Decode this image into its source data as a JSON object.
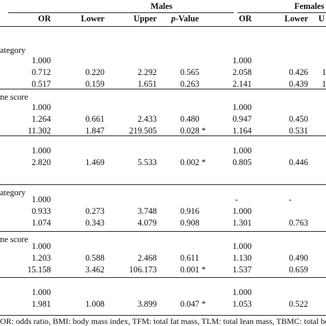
{
  "header": {
    "group_males": "Males",
    "group_females": "Females",
    "col_or": "OR",
    "col_lower": "Lower",
    "col_upper": "Upper",
    "col_pvalue_italic": "p",
    "col_pvalue_rest": "-Value",
    "col_or_f": "OR",
    "col_lower_f": "Lower",
    "col_upper_f_partial": "U"
  },
  "sections": {
    "s1": "ategory",
    "s2": "ne score",
    "s4": "ategory",
    "s5": "ne score"
  },
  "rows": [
    {
      "or_m": "1.000",
      "lo_m": "",
      "up_m": "",
      "p_m": "",
      "or_f": "1.000",
      "lo_f": "",
      "up_f": ""
    },
    {
      "or_m": "0.712",
      "lo_m": "0.220",
      "up_m": "2.292",
      "p_m": "0.565",
      "or_f": "2.058",
      "lo_f": "0.426",
      "up_f": "1"
    },
    {
      "or_m": "0.517",
      "lo_m": "0.159",
      "up_m": "1.651",
      "p_m": "0.263",
      "or_f": "2.141",
      "lo_f": "0.439",
      "up_f": "1"
    },
    {
      "or_m": "1.000",
      "lo_m": "",
      "up_m": "",
      "p_m": "",
      "or_f": "1.000",
      "lo_f": "",
      "up_f": ""
    },
    {
      "or_m": "1.264",
      "lo_m": "0.661",
      "up_m": "2.433",
      "p_m": "0.480",
      "or_f": "0.947",
      "lo_f": "0.450",
      "up_f": ""
    },
    {
      "or_m": "11.302",
      "lo_m": "1.847",
      "up_m": "219.505",
      "p_m": "0.028 *",
      "or_f": "1.164",
      "lo_f": "0.531",
      "up_f": ""
    },
    {
      "or_m": "1.000",
      "lo_m": "",
      "up_m": "",
      "p_m": "",
      "or_f": "1.000",
      "lo_f": "",
      "up_f": ""
    },
    {
      "or_m": "2.820",
      "lo_m": "1.469",
      "up_m": "5.533",
      "p_m": "0.002 *",
      "or_f": "0.805",
      "lo_f": "0.446",
      "up_f": ""
    },
    {
      "or_m": "1.000",
      "lo_m": "",
      "up_m": "",
      "p_m": "",
      "or_f": "-",
      "lo_f": "-",
      "up_f": ""
    },
    {
      "or_m": "0.933",
      "lo_m": "0.273",
      "up_m": "3.748",
      "p_m": "0.916",
      "or_f": "1.000",
      "lo_f": "",
      "up_f": ""
    },
    {
      "or_m": "1.074",
      "lo_m": "0.343",
      "up_m": "4.079",
      "p_m": "0.908",
      "or_f": "1.301",
      "lo_f": "0.763",
      "up_f": ""
    },
    {
      "or_m": "1.000",
      "lo_m": "",
      "up_m": "",
      "p_m": "",
      "or_f": "1.000",
      "lo_f": "",
      "up_f": ""
    },
    {
      "or_m": "1.203",
      "lo_m": "0.588",
      "up_m": "2.468",
      "p_m": "0.611",
      "or_f": "1.130",
      "lo_f": "0.490",
      "up_f": ""
    },
    {
      "or_m": "15.158",
      "lo_m": "3.462",
      "up_m": "106.173",
      "p_m": "0.001 *",
      "or_f": "1.537",
      "lo_f": "0.659",
      "up_f": ""
    },
    {
      "or_m": "1.000",
      "lo_m": "",
      "up_m": "",
      "p_m": "",
      "or_f": "1.000",
      "lo_f": "",
      "up_f": ""
    },
    {
      "or_m": "1.981",
      "lo_m": "1.008",
      "up_m": "3.899",
      "p_m": "0.047 *",
      "or_f": "1.053",
      "lo_f": "0.522",
      "up_f": ""
    }
  ],
  "footnote": "OR: odds ratio, BMI: body mass index, TFM: total fat mass, TLM: total lean mass, TBMC: total bo"
}
